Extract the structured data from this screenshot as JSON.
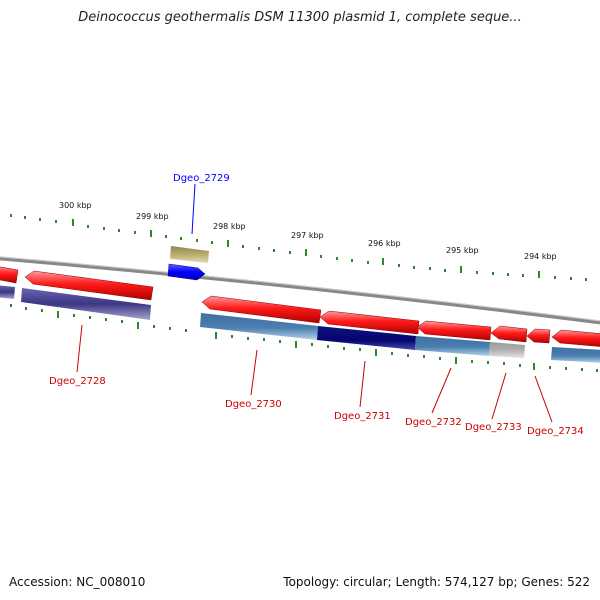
{
  "title": "Deinococcus geothermalis DSM 11300 plasmid 1, complete seque...",
  "footer": {
    "accession": "Accession: NC_008010",
    "summary": "Topology: circular; Length: 574,127 bp; Genes: 522"
  },
  "scale": {
    "ticks": [
      "300 kbp",
      "299 kbp",
      "298 kbp",
      "297 kbp",
      "296 kbp",
      "295 kbp",
      "294 kbp"
    ],
    "tick_color": "#2a8a2a"
  },
  "genes": [
    {
      "label": "Dgeo_2729",
      "color": "#0000ff"
    },
    {
      "label": "Dgeo_2728",
      "color": "#cc0000"
    },
    {
      "label": "Dgeo_2730",
      "color": "#cc0000"
    },
    {
      "label": "Dgeo_2731",
      "color": "#cc0000"
    },
    {
      "label": "Dgeo_2732",
      "color": "#cc0000"
    },
    {
      "label": "Dgeo_2733",
      "color": "#cc0000"
    },
    {
      "label": "Dgeo_2734",
      "color": "#cc0000"
    }
  ],
  "colors": {
    "backbone": "#888888",
    "cds": "#ff0000",
    "feature_dark": "#3b3784",
    "feature_steel": "#4a7fb0",
    "feature_navy": "#050570",
    "feature_khaki": "#b8ad6e",
    "feature_blue": "#0000ff",
    "feature_grey": "#b0b0b0"
  }
}
